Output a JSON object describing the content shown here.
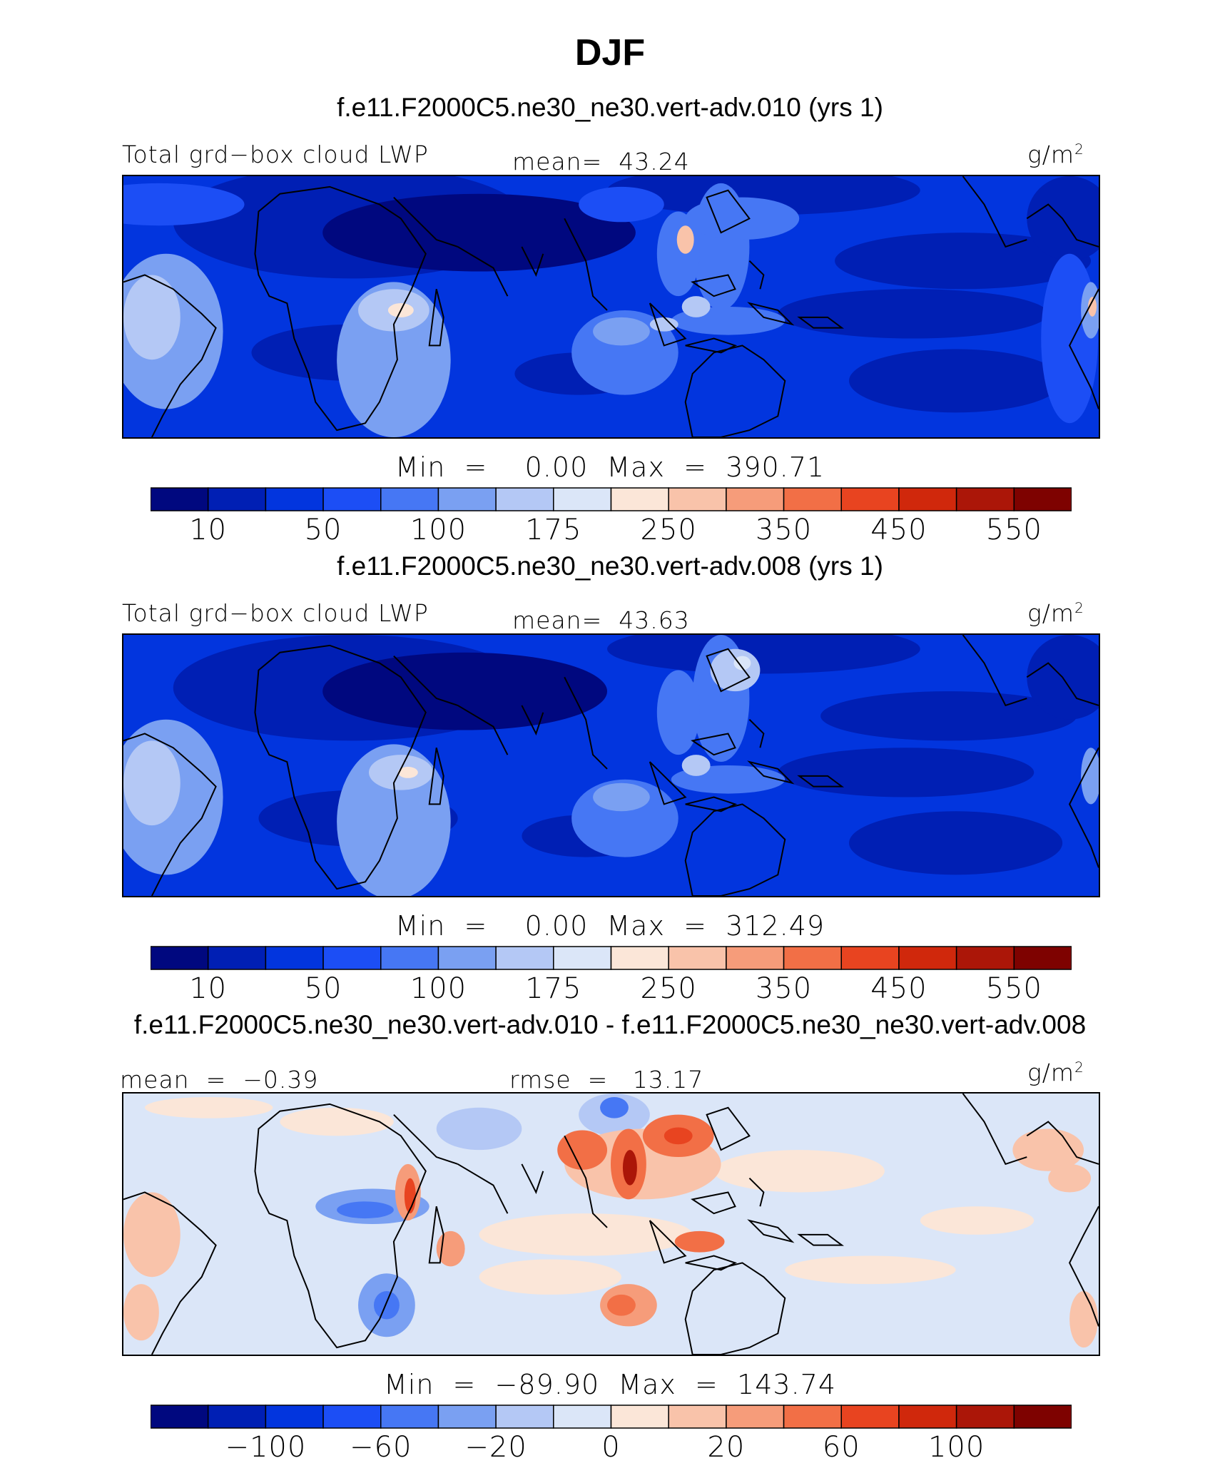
{
  "figure": {
    "title": "DJF"
  },
  "panels": [
    {
      "title": "f.e11.F2000C5.ne30_ne30.vert-adv.010 (yrs 1)",
      "left_label": "Total grd−box cloud LWP",
      "center_label": "mean=  43.24",
      "units": "g/m",
      "units_sup": "2",
      "min_max": "Min  =    0.00  Max  =  390.71",
      "colorbar_labels": [
        "10",
        "50",
        "100",
        "175",
        "250",
        "350",
        "450",
        "550"
      ],
      "palette": "sequential"
    },
    {
      "title": "f.e11.F2000C5.ne30_ne30.vert-adv.008 (yrs 1)",
      "left_label": "Total grd−box cloud LWP",
      "center_label": "mean=  43.63",
      "units": "g/m",
      "units_sup": "2",
      "min_max": "Min  =    0.00  Max  =  312.49",
      "colorbar_labels": [
        "10",
        "50",
        "100",
        "175",
        "250",
        "350",
        "450",
        "550"
      ],
      "palette": "sequential"
    },
    {
      "title": "f.e11.F2000C5.ne30_ne30.vert-adv.010 - f.e11.F2000C5.ne30_ne30.vert-adv.008",
      "left_label": "mean  =  −0.39",
      "center_label": "rmse  =   13.17",
      "units": "g/m",
      "units_sup": "2",
      "min_max": "Min  =  −89.90  Max  =  143.74",
      "colorbar_labels": [
        "−100",
        "−60",
        "−20",
        "0",
        "20",
        "60",
        "100"
      ],
      "palette": "diverging"
    }
  ],
  "colors": {
    "scale": [
      "#00087f",
      "#001fb4",
      "#0235de",
      "#1c4ef5",
      "#4677f4",
      "#7aa0f2",
      "#b4c8f5",
      "#dbe6f8",
      "#fbe6d8",
      "#f9c3aa",
      "#f69c7a",
      "#f26f46",
      "#e84420",
      "#d0280c",
      "#ab1608",
      "#7e0200"
    ],
    "land_outline": "#000000"
  }
}
